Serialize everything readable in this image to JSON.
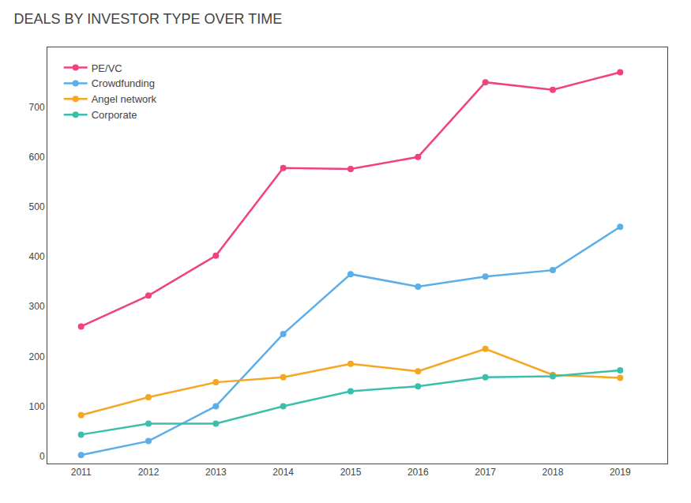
{
  "chart_data": {
    "type": "line",
    "title": "DEALS BY INVESTOR TYPE OVER TIME",
    "x": [
      2011,
      2012,
      2013,
      2014,
      2015,
      2016,
      2017,
      2018,
      2019
    ],
    "series": [
      {
        "name": "PE/VC",
        "color": "#f0437a",
        "values": [
          260,
          322,
          402,
          578,
          576,
          600,
          750,
          735,
          770
        ]
      },
      {
        "name": "Crowdfunding",
        "color": "#5baee8",
        "values": [
          2,
          30,
          100,
          245,
          365,
          340,
          360,
          373,
          460
        ]
      },
      {
        "name": "Angel network",
        "color": "#f5a623",
        "values": [
          82,
          118,
          148,
          158,
          185,
          170,
          215,
          163,
          157
        ]
      },
      {
        "name": "Corporate",
        "color": "#3bbfad",
        "values": [
          43,
          65,
          65,
          100,
          130,
          140,
          158,
          160,
          172
        ]
      }
    ],
    "xlim": [
      2010.5,
      2019.7
    ],
    "xticks": [
      2011,
      2012,
      2013,
      2014,
      2015,
      2016,
      2017,
      2018,
      2019
    ],
    "ylim": [
      -15,
      820
    ],
    "yticks": [
      0,
      100,
      200,
      300,
      400,
      500,
      600,
      700
    ],
    "grid": false,
    "legend": "upper left",
    "marker": "circle"
  }
}
